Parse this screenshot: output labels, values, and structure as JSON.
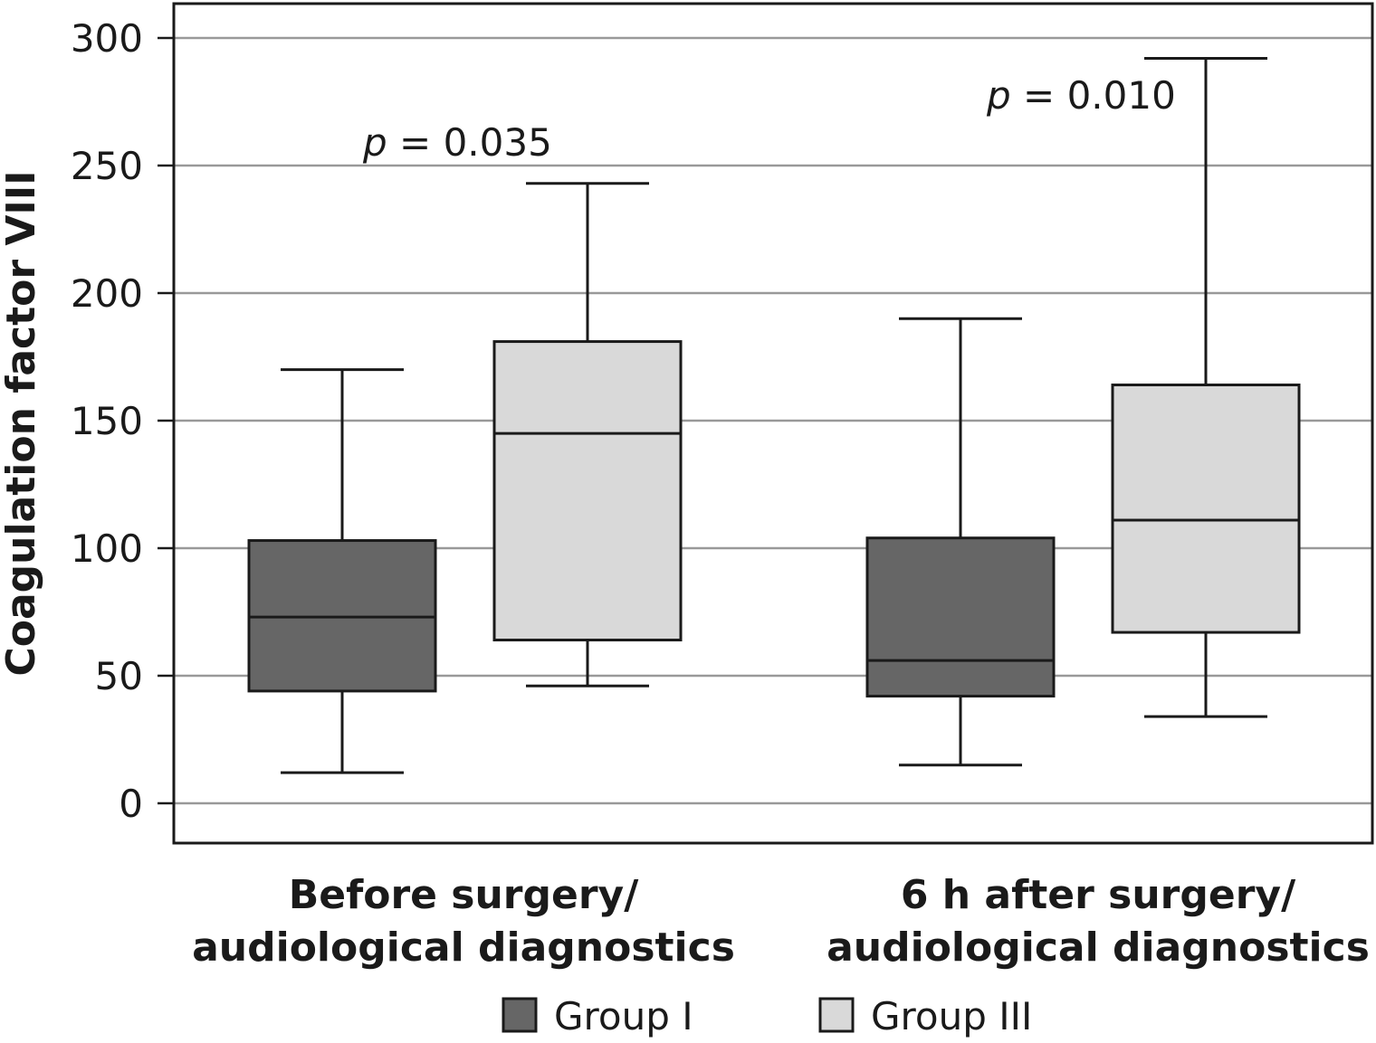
{
  "chart_data": {
    "type": "box",
    "ylabel": "Coagulation factor VIII",
    "xlabel": "",
    "ylim": [
      -15,
      315
    ],
    "yticks": [
      0,
      50,
      100,
      150,
      200,
      250,
      300
    ],
    "grid": true,
    "legend_position": "bottom",
    "categories": [
      [
        "Before surgery/",
        "audiological diagnostics"
      ],
      [
        "6 h after surgery/",
        "audiological diagnostics"
      ]
    ],
    "series": [
      {
        "name": "Group I",
        "color": "#666666",
        "boxes": [
          {
            "min": 12,
            "q1": 44,
            "median": 73,
            "q3": 103,
            "max": 170
          },
          {
            "min": 15,
            "q1": 42,
            "median": 56,
            "q3": 104,
            "max": 190
          }
        ]
      },
      {
        "name": "Group III",
        "color": "#d9d9d9",
        "boxes": [
          {
            "min": 46,
            "q1": 64,
            "median": 145,
            "q3": 181,
            "max": 243
          },
          {
            "min": 34,
            "q1": 67,
            "median": 111,
            "q3": 164,
            "max": 292
          }
        ]
      }
    ],
    "annotations": [
      {
        "p": "p",
        "rest": " = 0.035",
        "category": 0
      },
      {
        "p": "p",
        "rest": " = 0.010",
        "category": 1
      }
    ]
  }
}
